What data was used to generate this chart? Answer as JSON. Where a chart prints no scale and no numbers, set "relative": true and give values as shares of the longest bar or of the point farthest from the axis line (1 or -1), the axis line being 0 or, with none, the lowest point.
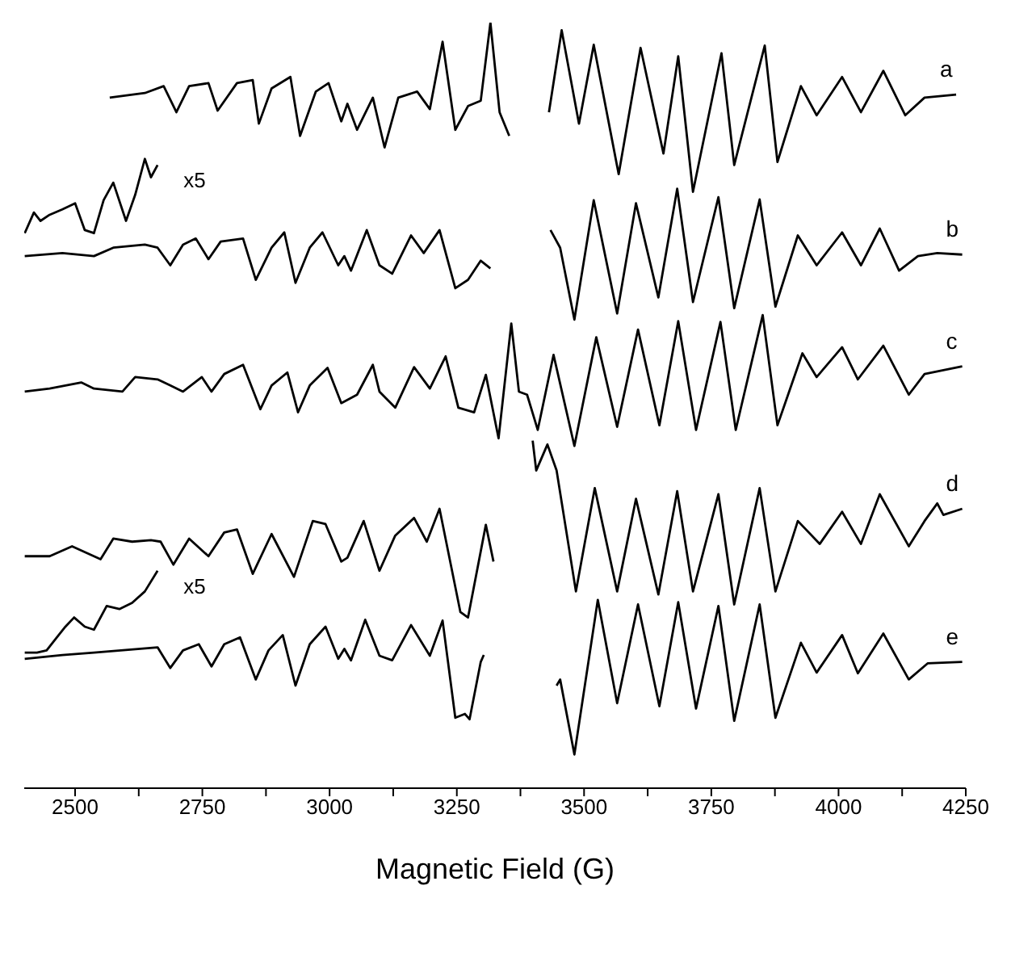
{
  "chart_data": {
    "type": "line",
    "relative": true,
    "xlabel": "Magnetic Field  (G)",
    "xlim": [
      2400,
      4250
    ],
    "xticks": [
      2500,
      {
        "value": 2625,
        "label": null
      },
      2750,
      {
        "value": 2875,
        "label": null
      },
      3000,
      {
        "value": 3125,
        "label": null
      },
      3250,
      {
        "value": 3375,
        "label": null
      },
      3500,
      {
        "value": 3625,
        "label": null
      },
      3750,
      {
        "value": 3875,
        "label": null
      },
      4000,
      {
        "value": 4125,
        "label": null
      },
      4250
    ],
    "tick_labels": "x",
    "marker": "none",
    "line_style": "solid",
    "annotations": [
      "x5",
      "x5"
    ],
    "series": [
      {
        "name": "a",
        "color": "#000000",
        "x": [
          2568,
          2637,
          2674,
          2699,
          2724,
          2762,
          2780,
          2818,
          2849,
          2861,
          2886,
          2923,
          2942,
          2973,
          2998,
          3023,
          3035,
          3054,
          3085,
          3108,
          3135,
          3172,
          3197,
          3222,
          3247,
          3272,
          3297,
          3316,
          3334,
          3353,
          3390,
          3431,
          3456,
          3490,
          3519,
          3568,
          3611,
          3656,
          3685,
          3714,
          3770,
          3795,
          3855,
          3880,
          3926,
          3957,
          4007,
          4044,
          4088,
          4131,
          4169,
          4231
        ],
        "values": [
          0.902,
          0.908,
          0.917,
          0.883,
          0.917,
          0.921,
          0.885,
          0.921,
          0.925,
          0.868,
          0.914,
          0.929,
          0.852,
          0.91,
          0.921,
          0.871,
          0.894,
          0.86,
          0.902,
          0.837,
          0.902,
          0.91,
          0.887,
          0.975,
          0.86,
          0.891,
          0.898,
          1.0,
          0.883,
          0.852,
          null,
          0.883,
          0.99,
          0.868,
          0.971,
          0.802,
          0.967,
          0.829,
          0.956,
          0.779,
          0.96,
          0.814,
          0.97,
          0.818,
          0.917,
          0.879,
          0.929,
          0.883,
          0.937,
          0.879,
          0.902,
          0.906
        ]
      },
      {
        "color": "#000000",
        "x": [
          2401,
          2419,
          2432,
          2450,
          2475,
          2500,
          2519,
          2537,
          2556,
          2575,
          2600,
          2618,
          2637,
          2649,
          2662
        ],
        "values": [
          0.725,
          0.752,
          0.741,
          0.749,
          0.756,
          0.764,
          0.729,
          0.725,
          0.768,
          0.791,
          0.741,
          0.775,
          0.822,
          0.798,
          0.814
        ]
      },
      {
        "name": "b",
        "color": "#000000",
        "x": [
          2401,
          2475,
          2537,
          2575,
          2637,
          2662,
          2687,
          2712,
          2737,
          2762,
          2786,
          2830,
          2855,
          2886,
          2911,
          2933,
          2961,
          2986,
          3017,
          3029,
          3042,
          3073,
          3098,
          3123,
          3160,
          3185,
          3216,
          3247,
          3272,
          3297,
          3316,
          3380,
          3434,
          3453,
          3481,
          3519,
          3565,
          3602,
          3646,
          3683,
          3714,
          3764,
          3795,
          3845,
          3876,
          3920,
          3957,
          4007,
          4044,
          4081,
          4119,
          4156,
          4194,
          4243
        ],
        "values": [
          0.695,
          0.699,
          0.695,
          0.706,
          0.71,
          0.706,
          0.683,
          0.71,
          0.718,
          0.691,
          0.714,
          0.718,
          0.664,
          0.706,
          0.726,
          0.66,
          0.706,
          0.726,
          0.683,
          0.695,
          0.676,
          0.729,
          0.683,
          0.672,
          0.722,
          0.699,
          0.729,
          0.653,
          0.664,
          0.689,
          0.679,
          null,
          0.729,
          0.706,
          0.612,
          0.768,
          0.62,
          0.764,
          0.641,
          0.783,
          0.635,
          0.772,
          0.627,
          0.769,
          0.629,
          0.722,
          0.683,
          0.726,
          0.683,
          0.731,
          0.676,
          0.695,
          0.699,
          0.697
        ]
      },
      {
        "name": "c",
        "color": "#000000",
        "x": [
          2401,
          2450,
          2512,
          2537,
          2593,
          2618,
          2662,
          2687,
          2712,
          2749,
          2768,
          2793,
          2830,
          2864,
          2886,
          2917,
          2938,
          2961,
          2996,
          3023,
          3054,
          3085,
          3098,
          3129,
          3166,
          3197,
          3228,
          3253,
          3284,
          3307,
          3332,
          3357,
          3372,
          3388,
          3409,
          3440,
          3481,
          3524,
          3565,
          3606,
          3648,
          3685,
          3720,
          3768,
          3798,
          3851,
          3880,
          3929,
          3957,
          4007,
          4038,
          4088,
          4138,
          4169,
          4243
        ],
        "values": [
          0.518,
          0.522,
          0.53,
          0.522,
          0.518,
          0.537,
          0.534,
          0.526,
          0.518,
          0.537,
          0.518,
          0.541,
          0.553,
          0.495,
          0.526,
          0.543,
          0.491,
          0.526,
          0.549,
          0.503,
          0.514,
          0.553,
          0.518,
          0.497,
          0.55,
          0.522,
          0.564,
          0.497,
          0.491,
          0.54,
          0.457,
          0.607,
          0.518,
          0.514,
          0.468,
          0.566,
          0.447,
          0.589,
          0.472,
          0.599,
          0.474,
          0.61,
          0.468,
          0.609,
          0.468,
          0.618,
          0.474,
          0.568,
          0.537,
          0.576,
          0.534,
          0.578,
          0.514,
          0.541,
          0.551
        ]
      },
      {
        "name": "d",
        "color": "#000000",
        "x": [
          2401,
          2450,
          2494,
          2550,
          2575,
          2612,
          2649,
          2668,
          2693,
          2724,
          2762,
          2793,
          2818,
          2849,
          2886,
          2930,
          2967,
          2992,
          3023,
          3035,
          3067,
          3098,
          3129,
          3166,
          3191,
          3216,
          3257,
          3272,
          3307,
          3322,
          3360,
          3399,
          3406,
          3428,
          3446,
          3484,
          3521,
          3565,
          3602,
          3646,
          3683,
          3714,
          3764,
          3795,
          3845,
          3876,
          3920,
          3963,
          4007,
          4044,
          4081,
          4138,
          4169,
          4194,
          4206,
          4243
        ],
        "values": [
          0.303,
          0.303,
          0.316,
          0.299,
          0.326,
          0.322,
          0.324,
          0.322,
          0.292,
          0.326,
          0.303,
          0.334,
          0.338,
          0.28,
          0.332,
          0.276,
          0.349,
          0.345,
          0.296,
          0.301,
          0.349,
          0.284,
          0.33,
          0.353,
          0.322,
          0.365,
          0.23,
          0.223,
          0.344,
          0.296,
          null,
          0.454,
          0.415,
          0.449,
          0.415,
          0.257,
          0.392,
          0.257,
          0.378,
          0.253,
          0.388,
          0.257,
          0.384,
          0.24,
          0.392,
          0.257,
          0.349,
          0.319,
          0.361,
          0.319,
          0.384,
          0.316,
          0.349,
          0.372,
          0.357,
          0.365
        ]
      },
      {
        "color": "#000000",
        "x": [
          2401,
          2425,
          2444,
          2463,
          2481,
          2498,
          2519,
          2537,
          2562,
          2587,
          2612,
          2637,
          2662
        ],
        "values": [
          0.177,
          0.177,
          0.18,
          0.196,
          0.211,
          0.223,
          0.211,
          0.207,
          0.238,
          0.234,
          0.242,
          0.257,
          0.284
        ]
      },
      {
        "name": "e",
        "color": "#000000",
        "x": [
          2401,
          2475,
          2537,
          2662,
          2687,
          2712,
          2743,
          2768,
          2793,
          2824,
          2855,
          2880,
          2908,
          2933,
          2961,
          2992,
          3017,
          3029,
          3042,
          3070,
          3098,
          3123,
          3160,
          3197,
          3222,
          3247,
          3266,
          3275,
          3297,
          3303,
          3380,
          3446,
          3453,
          3481,
          3527,
          3565,
          3606,
          3648,
          3685,
          3720,
          3764,
          3795,
          3845,
          3876,
          3926,
          3957,
          4007,
          4038,
          4088,
          4138,
          4175,
          4243
        ],
        "values": [
          0.169,
          0.174,
          0.177,
          0.184,
          0.157,
          0.18,
          0.188,
          0.159,
          0.188,
          0.197,
          0.142,
          0.18,
          0.2,
          0.134,
          0.188,
          0.211,
          0.169,
          0.182,
          0.167,
          0.22,
          0.173,
          0.167,
          0.213,
          0.173,
          0.219,
          0.092,
          0.097,
          0.09,
          0.165,
          0.174,
          null,
          0.134,
          0.142,
          0.044,
          0.246,
          0.111,
          0.24,
          0.107,
          0.243,
          0.104,
          0.238,
          0.088,
          0.24,
          0.092,
          0.19,
          0.151,
          0.2,
          0.15,
          0.202,
          0.142,
          0.163,
          0.165
        ]
      }
    ]
  }
}
